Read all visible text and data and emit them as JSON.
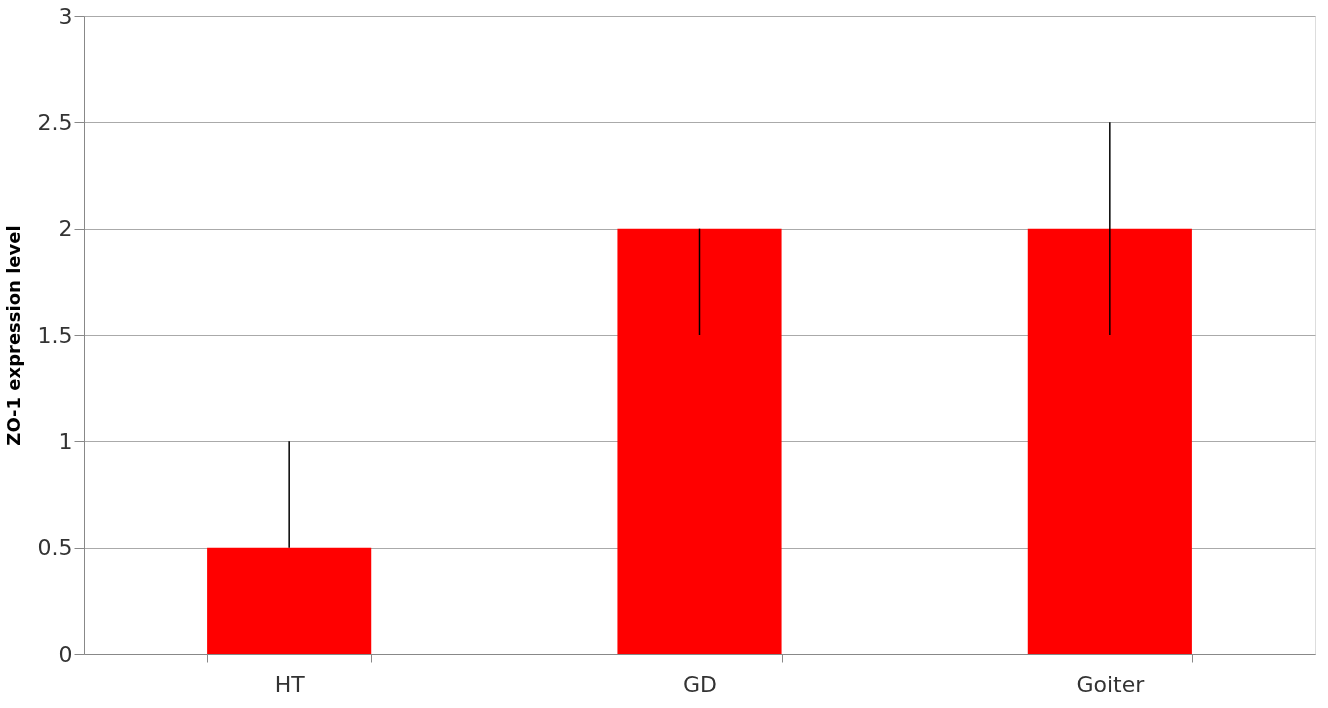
{
  "chart_data": {
    "type": "bar",
    "ylabel": "ZO-1 expression level",
    "categories": [
      "HT",
      "GD",
      "Goiter"
    ],
    "series": [
      {
        "color": "#ff0000",
        "values": [
          0.5,
          2,
          2
        ],
        "errors": [
          [
            0.5,
            1
          ],
          [
            1.5,
            2
          ],
          [
            1.5,
            2.5
          ]
        ]
      }
    ],
    "ylim": [
      0,
      3
    ],
    "yticks": [
      0,
      0.5,
      1,
      1.5,
      2,
      2.5,
      3
    ],
    "grid": "y"
  }
}
